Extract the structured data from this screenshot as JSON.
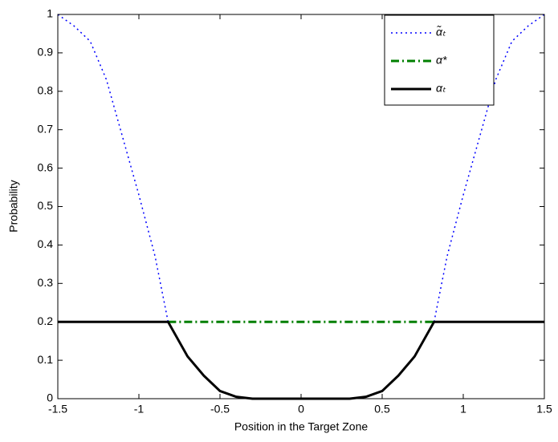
{
  "chart_data": {
    "type": "line",
    "xlabel": "Position in the Target Zone",
    "ylabel": "Probability",
    "x": [
      -1.5,
      -1.4,
      -1.3,
      -1.2,
      -1.1,
      -1.0,
      -0.9,
      -0.82,
      -0.7,
      -0.6,
      -0.5,
      -0.4,
      -0.3,
      -0.2,
      -0.1,
      0,
      0.1,
      0.2,
      0.3,
      0.4,
      0.5,
      0.6,
      0.7,
      0.82,
      0.9,
      1.0,
      1.1,
      1.2,
      1.3,
      1.4,
      1.5
    ],
    "series": [
      {
        "name": "α̃ₜ",
        "color": "#0000ff",
        "style": "dotted",
        "values": [
          1,
          0.97,
          0.93,
          0.83,
          0.68,
          0.53,
          0.37,
          0.2,
          null,
          null,
          null,
          null,
          null,
          null,
          null,
          null,
          null,
          null,
          null,
          null,
          null,
          null,
          null,
          0.2,
          0.37,
          0.53,
          0.68,
          0.83,
          0.93,
          0.97,
          1
        ]
      },
      {
        "name": "α*",
        "color": "#007f00",
        "style": "dashdot",
        "values": [
          null,
          null,
          null,
          null,
          null,
          null,
          null,
          0.2,
          0.2,
          0.2,
          0.2,
          0.2,
          0.2,
          0.2,
          0.2,
          0.2,
          0.2,
          0.2,
          0.2,
          0.2,
          0.2,
          0.2,
          0.2,
          0.2,
          null,
          null,
          null,
          null,
          null,
          null,
          null
        ]
      },
      {
        "name": "αₜ",
        "color": "#000000",
        "style": "solid",
        "values": [
          0.2,
          0.2,
          0.2,
          0.2,
          0.2,
          0.2,
          0.2,
          0.2,
          0.11,
          0.06,
          0.02,
          0.005,
          0,
          0,
          0,
          0,
          0,
          0,
          0,
          0.005,
          0.02,
          0.06,
          0.11,
          0.2,
          0.2,
          0.2,
          0.2,
          0.2,
          0.2,
          0.2,
          0.2
        ]
      }
    ],
    "xlim": [
      -1.5,
      1.5
    ],
    "xticks": [
      -1.5,
      -1,
      -0.5,
      0,
      0.5,
      1,
      1.5
    ],
    "ylim": [
      0,
      1
    ],
    "yticks": [
      0,
      0.1,
      0.2,
      0.3,
      0.4,
      0.5,
      0.6,
      0.7,
      0.8,
      0.9,
      1
    ],
    "legend": "upper-right"
  }
}
